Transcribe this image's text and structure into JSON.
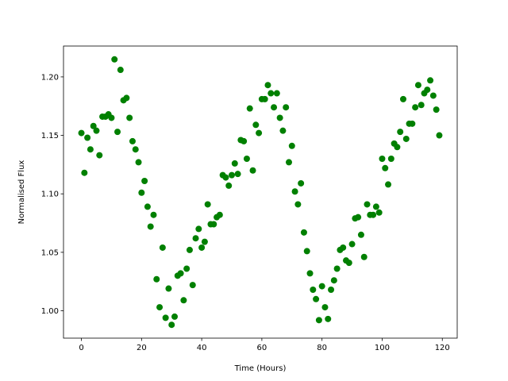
{
  "chart_data": {
    "type": "scatter",
    "xlabel": "Time (Hours)",
    "ylabel": "Normalised Flux",
    "color": "#008000",
    "x": [
      0,
      1,
      2,
      3,
      4,
      5,
      6,
      7,
      8,
      9,
      10,
      11,
      12,
      13,
      14,
      15,
      16,
      17,
      18,
      19,
      20,
      21,
      22,
      23,
      24,
      25,
      26,
      27,
      28,
      29,
      30,
      31,
      32,
      33,
      34,
      35,
      36,
      37,
      38,
      39,
      40,
      41,
      42,
      43,
      44,
      45,
      46,
      47,
      48,
      49,
      50,
      51,
      52,
      53,
      54,
      55,
      56,
      57,
      58,
      59,
      60,
      61,
      62,
      63,
      64,
      65,
      66,
      67,
      68,
      69,
      70,
      71,
      72,
      73,
      74,
      75,
      76,
      77,
      78,
      79,
      80,
      81,
      82,
      83,
      84,
      85,
      86,
      87,
      88,
      89,
      90,
      91,
      92,
      93,
      94,
      95,
      96,
      97,
      98,
      99,
      100,
      101,
      102,
      103,
      104,
      105,
      106,
      107,
      108,
      109,
      110,
      111,
      112,
      113,
      114,
      115,
      116,
      117,
      118,
      119
    ],
    "values": [
      1.152,
      1.118,
      1.148,
      1.138,
      1.158,
      1.154,
      1.133,
      1.166,
      1.166,
      1.168,
      1.165,
      1.215,
      1.153,
      1.206,
      1.18,
      1.182,
      1.165,
      1.145,
      1.138,
      1.127,
      1.101,
      1.111,
      1.089,
      1.072,
      1.082,
      1.027,
      1.003,
      1.054,
      0.994,
      1.019,
      0.988,
      0.995,
      1.03,
      1.032,
      1.009,
      1.036,
      1.052,
      1.022,
      1.062,
      1.07,
      1.054,
      1.059,
      1.091,
      1.074,
      1.074,
      1.08,
      1.082,
      1.116,
      1.114,
      1.107,
      1.116,
      1.126,
      1.117,
      1.146,
      1.145,
      1.13,
      1.173,
      1.12,
      1.159,
      1.152,
      1.181,
      1.181,
      1.193,
      1.186,
      1.174,
      1.186,
      1.165,
      1.154,
      1.174,
      1.127,
      1.141,
      1.102,
      1.091,
      1.109,
      1.067,
      1.051,
      1.032,
      1.018,
      1.01,
      0.992,
      1.021,
      1.003,
      0.993,
      1.018,
      1.026,
      1.036,
      1.052,
      1.054,
      1.043,
      1.041,
      1.057,
      1.079,
      1.08,
      1.065,
      1.046,
      1.091,
      1.082,
      1.082,
      1.089,
      1.084,
      1.13,
      1.122,
      1.108,
      1.13,
      1.143,
      1.14,
      1.153,
      1.181,
      1.147,
      1.16,
      1.16,
      1.174,
      1.193,
      1.176,
      1.186,
      1.189,
      1.197,
      1.184,
      1.172,
      1.15
    ],
    "xlim": [
      -5.95,
      124.95
    ],
    "ylim": [
      0.9766,
      1.2264
    ],
    "xticks": [
      0,
      20,
      40,
      60,
      80,
      100,
      120
    ],
    "yticks": [
      {
        "value": 1.0,
        "label": "1.00"
      },
      1.05,
      {
        "value": 1.1,
        "label": "1.10"
      },
      1.15,
      {
        "value": 1.2,
        "label": "1.20"
      }
    ]
  }
}
